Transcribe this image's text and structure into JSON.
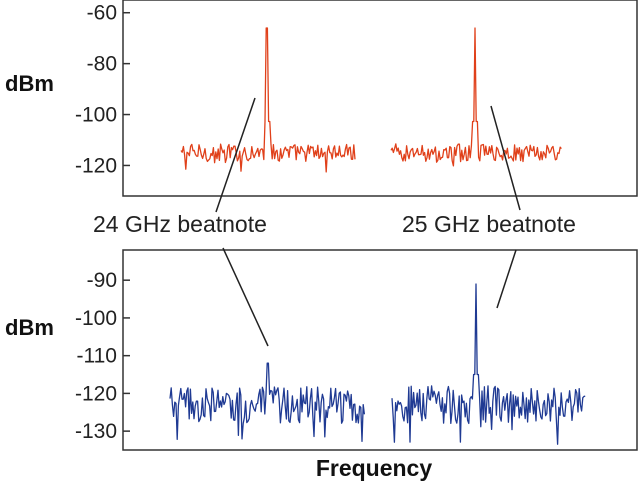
{
  "chart_data": [
    {
      "type": "line",
      "ylabel": "dBm",
      "xlabel": "",
      "ylim": [
        -132,
        -55
      ],
      "yticks": [
        -60,
        -80,
        -100,
        -120
      ],
      "grid": false,
      "color": "#e0401a",
      "series": [
        {
          "noise_floor": -115,
          "noise_amplitude": 3.5,
          "peak": -66,
          "x_range": [
            0,
            1
          ]
        },
        {
          "noise_floor": -115,
          "noise_amplitude": 3.5,
          "peak": -66,
          "x_range": [
            0,
            1
          ]
        }
      ]
    },
    {
      "type": "line",
      "ylabel": "dBm",
      "xlabel": "Frequency",
      "ylim": [
        -135,
        -82
      ],
      "yticks": [
        -90,
        -100,
        -110,
        -120,
        -130
      ],
      "grid": false,
      "color": "#1f3a93",
      "series": [
        {
          "noise_floor": -123,
          "noise_amplitude": 5,
          "peak": -112,
          "x_range": [
            0,
            1
          ]
        },
        {
          "noise_floor": -123,
          "noise_amplitude": 5,
          "peak": -91,
          "x_range": [
            0,
            1
          ]
        }
      ]
    }
  ],
  "annotations": [
    {
      "text": "24 GHz beatnote"
    },
    {
      "text": "25 GHz beatnote"
    }
  ]
}
